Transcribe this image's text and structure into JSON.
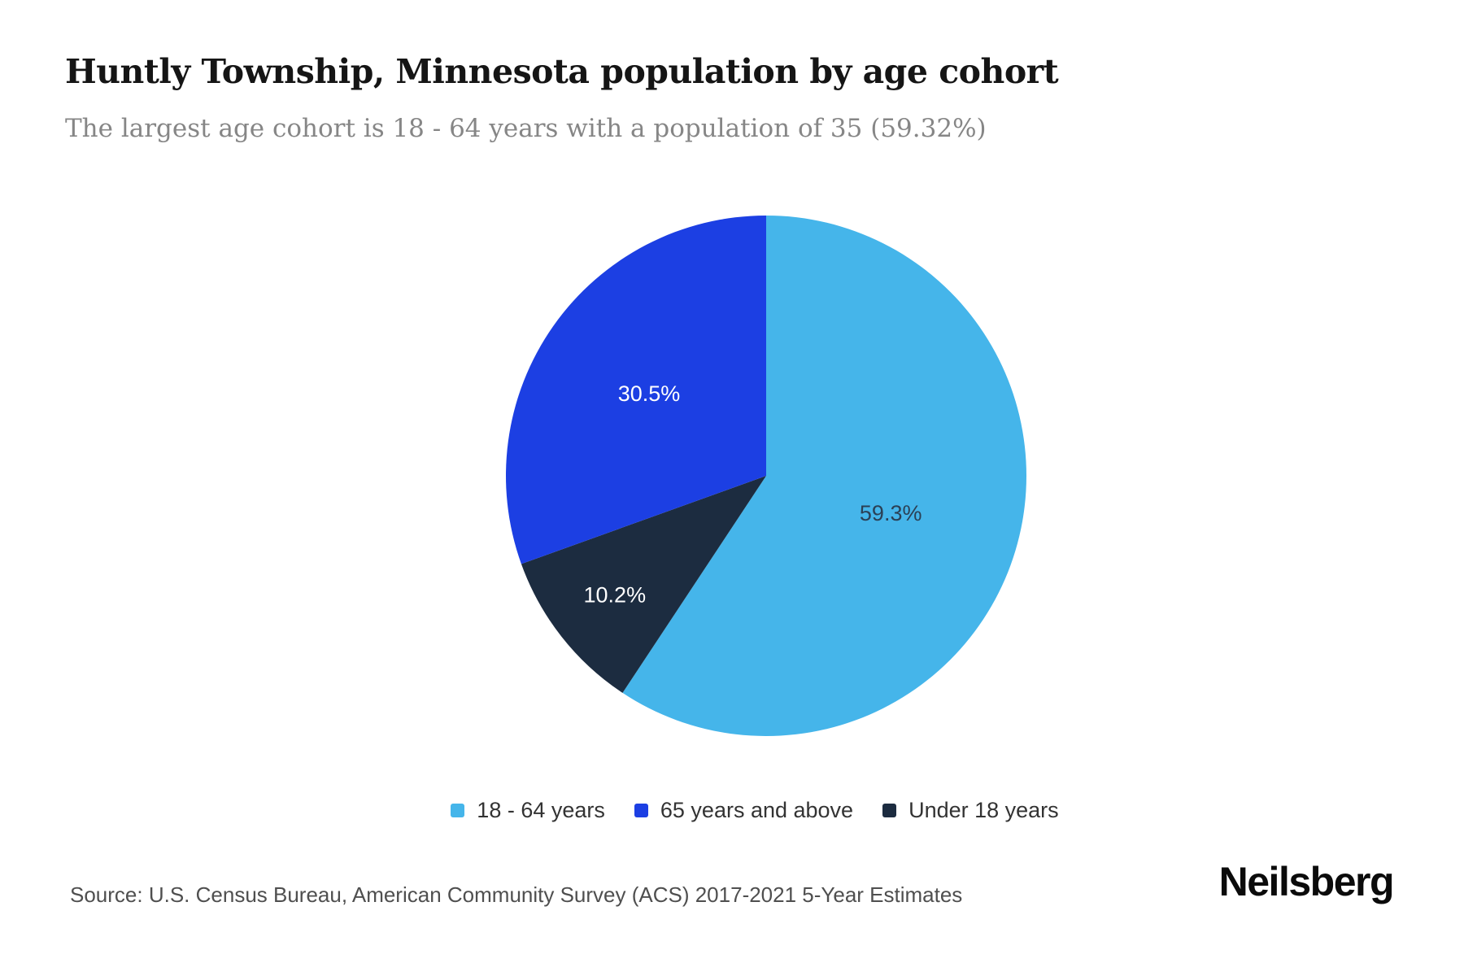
{
  "header": {
    "title": "Huntly Township, Minnesota population by age cohort",
    "subtitle": "The largest age cohort is 18 - 64 years with a population of 35 (59.32%)"
  },
  "chart_data": {
    "type": "pie",
    "title": "Huntly Township, Minnesota population by age cohort",
    "subtitle": "The largest age cohort is 18 - 64 years with a population of 35 (59.32%)",
    "start_angle": "top-clockwise",
    "legend_position": "bottom",
    "slices": [
      {
        "name": "18 - 64 years",
        "pct": 59.3,
        "label": "59.3%",
        "color": "#45B5EA",
        "label_color": "#2B4055"
      },
      {
        "name": "Under 18 years",
        "pct": 10.2,
        "label": "10.2%",
        "color": "#1C2C40",
        "label_color": "#FFFFFF"
      },
      {
        "name": "65 years and above",
        "pct": 30.5,
        "label": "30.5%",
        "color": "#1C3FE3",
        "label_color": "#FFFFFF"
      }
    ],
    "legend": [
      {
        "label": "18 - 64 years",
        "color": "#45B5EA"
      },
      {
        "label": "65 years and above",
        "color": "#1C3FE3"
      },
      {
        "label": "Under 18 years",
        "color": "#1C2C40"
      }
    ],
    "largest_cohort": {
      "name": "18 - 64 years",
      "population": 35,
      "pct_precise": "59.32%"
    }
  },
  "footer": {
    "source": "Source: U.S. Census Bureau, American Community Survey (ACS) 2017-2021 5-Year Estimates",
    "brand": "Neilsberg"
  }
}
